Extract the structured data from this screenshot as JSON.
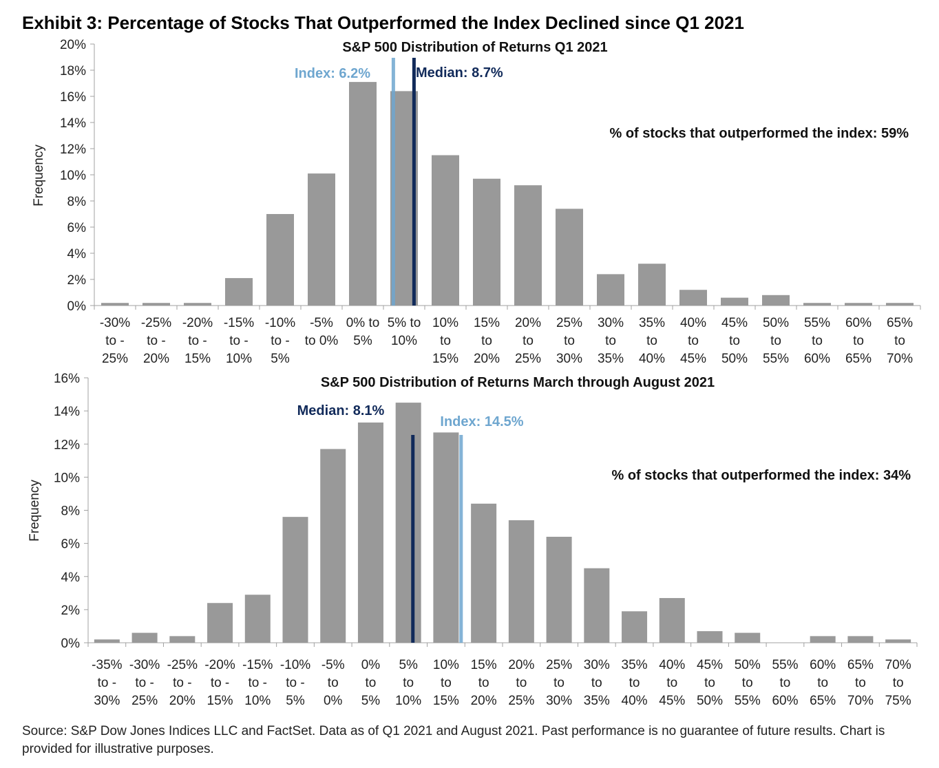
{
  "title": "Exhibit 3: Percentage of Stocks That Outperformed the Index Declined since Q1 2021",
  "source": "Source: S&P Dow Jones Indices LLC and FactSet. Data as of Q1 2021 and August 2021. Past performance is no guarantee of future results. Chart is provided for illustrative purposes.",
  "colors": {
    "bar": "#999999",
    "index": "#6ea6cf",
    "median": "#112a5a",
    "axis": "#a0a0a0"
  },
  "chart_data": [
    {
      "type": "bar",
      "title": "S&P 500 Distribution of Returns Q1 2021",
      "ylabel": "Frequency",
      "xlabel": "",
      "ylim": [
        0,
        20
      ],
      "yticks": [
        "0%",
        "2%",
        "4%",
        "6%",
        "8%",
        "10%",
        "12%",
        "14%",
        "16%",
        "18%",
        "20%"
      ],
      "categories": [
        [
          "-30%",
          "to -",
          "25%"
        ],
        [
          "-25%",
          "to -",
          "20%"
        ],
        [
          "-20%",
          "to -",
          "15%"
        ],
        [
          "-15%",
          "to -",
          "10%"
        ],
        [
          "-10%",
          "to -",
          "5%"
        ],
        [
          "-5%",
          "to 0%",
          ""
        ],
        [
          "0% to",
          "5%",
          ""
        ],
        [
          "5% to",
          "10%",
          ""
        ],
        [
          "10%",
          "to",
          "15%"
        ],
        [
          "15%",
          "to",
          "20%"
        ],
        [
          "20%",
          "to",
          "25%"
        ],
        [
          "25%",
          "to",
          "30%"
        ],
        [
          "30%",
          "to",
          "35%"
        ],
        [
          "35%",
          "to",
          "40%"
        ],
        [
          "40%",
          "to",
          "45%"
        ],
        [
          "45%",
          "to",
          "50%"
        ],
        [
          "50%",
          "to",
          "55%"
        ],
        [
          "55%",
          "to",
          "60%"
        ],
        [
          "60%",
          "to",
          "65%"
        ],
        [
          "65%",
          "to",
          "70%"
        ]
      ],
      "bin_lower": [
        -30,
        -25,
        -20,
        -15,
        -10,
        -5,
        0,
        5,
        10,
        15,
        20,
        25,
        30,
        35,
        40,
        45,
        50,
        55,
        60,
        65
      ],
      "values": [
        0.2,
        0.2,
        0.2,
        2.1,
        7.0,
        10.1,
        17.1,
        16.4,
        11.5,
        9.7,
        9.2,
        7.4,
        2.4,
        3.2,
        1.2,
        0.6,
        0.8,
        0.2,
        0.2,
        0.2
      ],
      "index": {
        "label": "Index: 6.2%",
        "value": 6.2
      },
      "median": {
        "label": "Median: 8.7%",
        "value": 8.7
      },
      "annotation": "% of stocks that outperformed the index: 59%"
    },
    {
      "type": "bar",
      "title": "S&P 500 Distribution of Returns March through August 2021",
      "ylabel": "Frequency",
      "xlabel": "",
      "ylim": [
        0,
        16
      ],
      "yticks": [
        "0%",
        "2%",
        "4%",
        "6%",
        "8%",
        "10%",
        "12%",
        "14%",
        "16%"
      ],
      "categories": [
        [
          "-35%",
          "to -",
          "30%"
        ],
        [
          "-30%",
          "to -",
          "25%"
        ],
        [
          "-25%",
          "to -",
          "20%"
        ],
        [
          "-20%",
          "to -",
          "15%"
        ],
        [
          "-15%",
          "to -",
          "10%"
        ],
        [
          "-10%",
          "to -",
          "5%"
        ],
        [
          "-5%",
          "to",
          "0%"
        ],
        [
          "0%",
          "to",
          "5%"
        ],
        [
          "5%",
          "to",
          "10%"
        ],
        [
          "10%",
          "to",
          "15%"
        ],
        [
          "15%",
          "to",
          "20%"
        ],
        [
          "20%",
          "to",
          "25%"
        ],
        [
          "25%",
          "to",
          "30%"
        ],
        [
          "30%",
          "to",
          "35%"
        ],
        [
          "35%",
          "to",
          "40%"
        ],
        [
          "40%",
          "to",
          "45%"
        ],
        [
          "45%",
          "to",
          "50%"
        ],
        [
          "50%",
          "to",
          "55%"
        ],
        [
          "55%",
          "to",
          "60%"
        ],
        [
          "60%",
          "to",
          "65%"
        ],
        [
          "65%",
          "to",
          "70%"
        ],
        [
          "70%",
          "to",
          "75%"
        ]
      ],
      "bin_lower": [
        -35,
        -30,
        -25,
        -20,
        -15,
        -10,
        -5,
        0,
        5,
        10,
        15,
        20,
        25,
        30,
        35,
        40,
        45,
        50,
        55,
        60,
        65,
        70
      ],
      "values": [
        0.2,
        0.6,
        0.4,
        2.4,
        2.9,
        7.6,
        11.7,
        13.3,
        14.5,
        12.7,
        8.4,
        7.4,
        6.4,
        4.5,
        1.9,
        2.7,
        0.7,
        0.6,
        0,
        0.4,
        0.4,
        0.2
      ],
      "index": {
        "label": "Index: 14.5%",
        "value": 14.5
      },
      "median": {
        "label": "Median: 8.1%",
        "value": 8.1
      },
      "annotation": "% of stocks that outperformed the index: 34%"
    }
  ]
}
